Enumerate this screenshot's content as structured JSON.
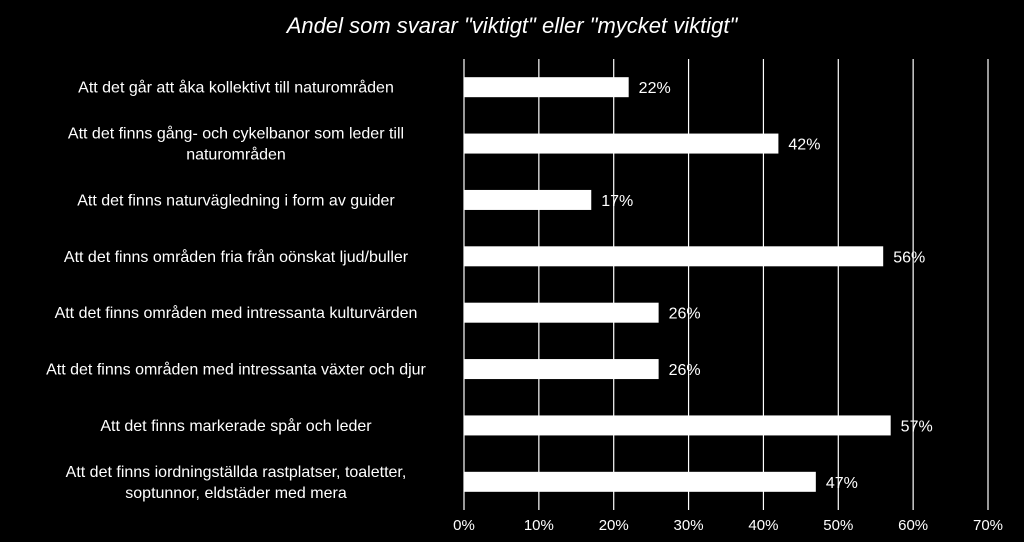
{
  "chart_data": {
    "type": "bar",
    "orientation": "horizontal",
    "title": "Andel som svarar \"viktigt\" eller \"mycket viktigt\"",
    "categories": [
      [
        "Att det går att åka kollektivt till naturområden"
      ],
      [
        "Att det finns gång- och cykelbanor som leder till",
        "naturområden"
      ],
      [
        "Att det finns naturvägledning i form av guider"
      ],
      [
        "Att det finns områden fria från oönskat ljud/buller"
      ],
      [
        "Att det finns områden med intressanta kulturvärden"
      ],
      [
        "Att det finns områden med intressanta växter och djur"
      ],
      [
        "Att det finns markerade spår och leder"
      ],
      [
        "Att det finns iordningställda rastplatser, toaletter,",
        "soptunnor, eldstäder med mera"
      ]
    ],
    "values": [
      22,
      42,
      17,
      56,
      26,
      26,
      57,
      47
    ],
    "data_labels": [
      "22%",
      "42%",
      "17%",
      "56%",
      "26%",
      "26%",
      "57%",
      "47%"
    ],
    "xlim": [
      0,
      70
    ],
    "x_ticks": [
      "0%",
      "10%",
      "20%",
      "30%",
      "40%",
      "50%",
      "60%",
      "70%"
    ],
    "grid": true,
    "colors": {
      "background": "#000000",
      "bar": "#ffffff",
      "text": "#ffffff"
    }
  }
}
